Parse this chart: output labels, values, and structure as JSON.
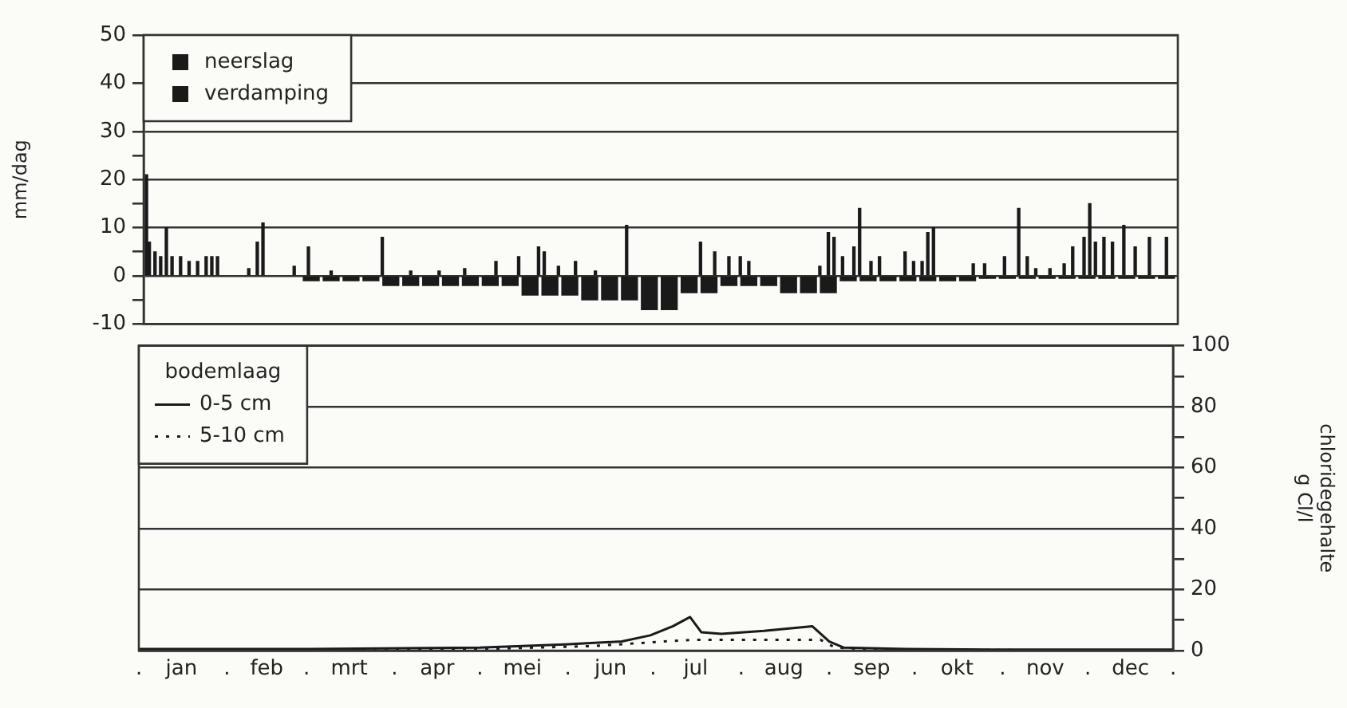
{
  "chart_data": [
    {
      "type": "bar",
      "ylabel": "mm/dag",
      "xlim": [
        "--01-01",
        "--12-31"
      ],
      "ylim": [
        -10,
        50
      ],
      "yticks": [
        -10,
        {
          "value": -5,
          "label": null
        },
        0,
        {
          "value": 5,
          "label": null
        },
        10,
        {
          "value": 15,
          "label": null
        },
        20,
        {
          "value": 25,
          "label": null
        },
        30,
        40,
        50
      ],
      "grid": "y",
      "legend": "top left",
      "tick_labels": "y",
      "series": [
        {
          "name": "neerslag",
          "color": "#1a1a1a",
          "x": [
            "--01-02",
            "--01-03",
            "--01-05",
            "--01-07",
            "--01-09",
            "--01-11",
            "--01-14",
            "--01-17",
            "--01-20",
            "--01-23",
            "--01-25",
            "--01-27",
            "--02-07",
            "--02-10",
            "--02-12",
            "--02-23",
            "--02-28",
            "--03-08",
            "--03-26",
            "--04-05",
            "--04-15",
            "--04-24",
            "--05-05",
            "--05-13",
            "--05-20",
            "--05-22",
            "--05-27",
            "--06-02",
            "--06-09",
            "--06-20",
            "--07-16",
            "--07-21",
            "--07-26",
            "--07-30",
            "--08-02",
            "--08-27",
            "--08-30",
            "--09-01",
            "--09-04",
            "--09-08",
            "--09-10",
            "--09-14",
            "--09-17",
            "--09-26",
            "--09-29",
            "--10-02",
            "--10-04",
            "--10-06",
            "--10-20",
            "--10-24",
            "--10-31",
            "--11-05",
            "--11-08",
            "--11-11",
            "--11-16",
            "--11-21",
            "--11-24",
            "--11-28",
            "--11-30",
            "--12-02",
            "--12-05",
            "--12-08",
            "--12-12",
            "--12-16",
            "--12-21",
            "--12-27"
          ],
          "values": [
            21,
            7,
            5,
            4,
            10,
            4,
            4,
            3,
            3,
            4,
            4,
            4,
            1.5,
            7,
            11,
            2,
            6,
            1,
            8,
            1,
            1,
            1.5,
            3,
            4,
            6,
            5,
            2,
            3,
            1,
            10.5,
            7,
            5,
            4,
            4,
            3,
            2,
            9,
            8,
            4,
            6,
            14,
            3,
            4,
            5,
            3,
            3,
            9,
            10,
            2.5,
            2.5,
            4,
            14,
            4,
            1.5,
            1.5,
            2.5,
            6,
            8,
            15,
            7,
            8,
            7,
            10.5,
            6,
            8,
            8
          ]
        },
        {
          "name": "verdamping",
          "color": "#1a1a1a",
          "x": [
            "--03-01",
            "--03-08",
            "--03-15",
            "--03-22",
            "--03-29",
            "--04-05",
            "--04-12",
            "--04-19",
            "--04-26",
            "--05-03",
            "--05-10",
            "--05-17",
            "--05-24",
            "--05-31",
            "--06-07",
            "--06-14",
            "--06-21",
            "--06-28",
            "--07-05",
            "--07-12",
            "--07-19",
            "--07-26",
            "--08-02",
            "--08-09",
            "--08-16",
            "--08-23",
            "--08-30",
            "--09-06",
            "--09-13",
            "--09-20",
            "--09-27",
            "--10-04",
            "--10-11",
            "--10-18",
            "--10-25",
            "--11-01",
            "--11-08",
            "--11-15",
            "--11-22",
            "--11-29",
            "--12-06",
            "--12-13",
            "--12-20",
            "--12-27"
          ],
          "values": [
            -1,
            -1,
            -1,
            -1,
            -2,
            -2,
            -2,
            -2,
            -2,
            -2,
            -2,
            -4,
            -4,
            -4,
            -5,
            -5,
            -5,
            -7,
            -7,
            -3.5,
            -3.5,
            -2,
            -2,
            -2,
            -3.5,
            -3.5,
            -3.5,
            -1,
            -1,
            -1,
            -1,
            -1,
            -1,
            -1,
            -0.5,
            -0.5,
            -0.5,
            -0.5,
            -0.5,
            -0.5,
            -0.5,
            -0.5,
            -0.5,
            -0.5
          ]
        }
      ]
    },
    {
      "type": "line",
      "y2label": "chloridegehalte\ng Cl/l",
      "legend_title": "bodemlaag",
      "xlim": [
        "--01-01",
        "--12-31"
      ],
      "xticks": [
        {
          "value": "--01-01",
          "label": "."
        },
        {
          "value": "--01-16",
          "label": "jan"
        },
        {
          "value": "--02-01",
          "label": "."
        },
        {
          "value": "--02-15",
          "label": "feb"
        },
        {
          "value": "--03-01",
          "label": "."
        },
        {
          "value": "--03-16",
          "label": "mrt"
        },
        {
          "value": "--04-01",
          "label": "."
        },
        {
          "value": "--04-16",
          "label": "apr"
        },
        {
          "value": "--05-01",
          "label": "."
        },
        {
          "value": "--05-16",
          "label": "mei"
        },
        {
          "value": "--06-01",
          "label": "."
        },
        {
          "value": "--06-16",
          "label": "jun"
        },
        {
          "value": "--07-01",
          "label": "."
        },
        {
          "value": "--07-16",
          "label": "jul"
        },
        {
          "value": "--08-01",
          "label": "."
        },
        {
          "value": "--08-16",
          "label": "aug"
        },
        {
          "value": "--09-01",
          "label": "."
        },
        {
          "value": "--09-16",
          "label": "sep"
        },
        {
          "value": "--10-01",
          "label": "."
        },
        {
          "value": "--10-16",
          "label": "okt"
        },
        {
          "value": "--11-01",
          "label": "."
        },
        {
          "value": "--11-16",
          "label": "nov"
        },
        {
          "value": "--12-01",
          "label": "."
        },
        {
          "value": "--12-16",
          "label": "dec"
        },
        {
          "value": "--12-31",
          "label": "."
        }
      ],
      "y2lim": [
        0,
        100
      ],
      "y2ticks": [
        0,
        {
          "value": 10,
          "label": null
        },
        20,
        {
          "value": 30,
          "label": null
        },
        40,
        {
          "value": 50,
          "label": null
        },
        60,
        {
          "value": 70,
          "label": null
        },
        80,
        {
          "value": 90,
          "label": null
        },
        100
      ],
      "grid": "y",
      "legend": "top left",
      "marker": "none",
      "series": [
        {
          "name": "0-5 cm",
          "color": "#1a1a1a",
          "axis": "y2",
          "line_style": "solid",
          "x": [
            "--01-01",
            "--03-02",
            "--05-01",
            "--05-31",
            "--06-20",
            "--06-30",
            "--07-08",
            "--07-14",
            "--07-18",
            "--07-25",
            "--08-09",
            "--08-26",
            "--09-01",
            "--09-06",
            "--09-28",
            "--10-28",
            "--12-31"
          ],
          "values": [
            0.5,
            0.5,
            1,
            2,
            3,
            5,
            8,
            11,
            6,
            5.5,
            6.5,
            8,
            3,
            1,
            0.5,
            0.3,
            0.3
          ]
        },
        {
          "name": "5-10 cm",
          "color": "#1a1a1a",
          "axis": "y2",
          "line_style": "dotted",
          "x": [
            "--01-01",
            "--05-01",
            "--06-10",
            "--07-05",
            "--07-15",
            "--08-09",
            "--08-29",
            "--09-03",
            "--09-18",
            "--12-31"
          ],
          "values": [
            0,
            0.5,
            1.5,
            3,
            3.5,
            3.5,
            3.5,
            1,
            0.3,
            0
          ]
        }
      ]
    }
  ]
}
